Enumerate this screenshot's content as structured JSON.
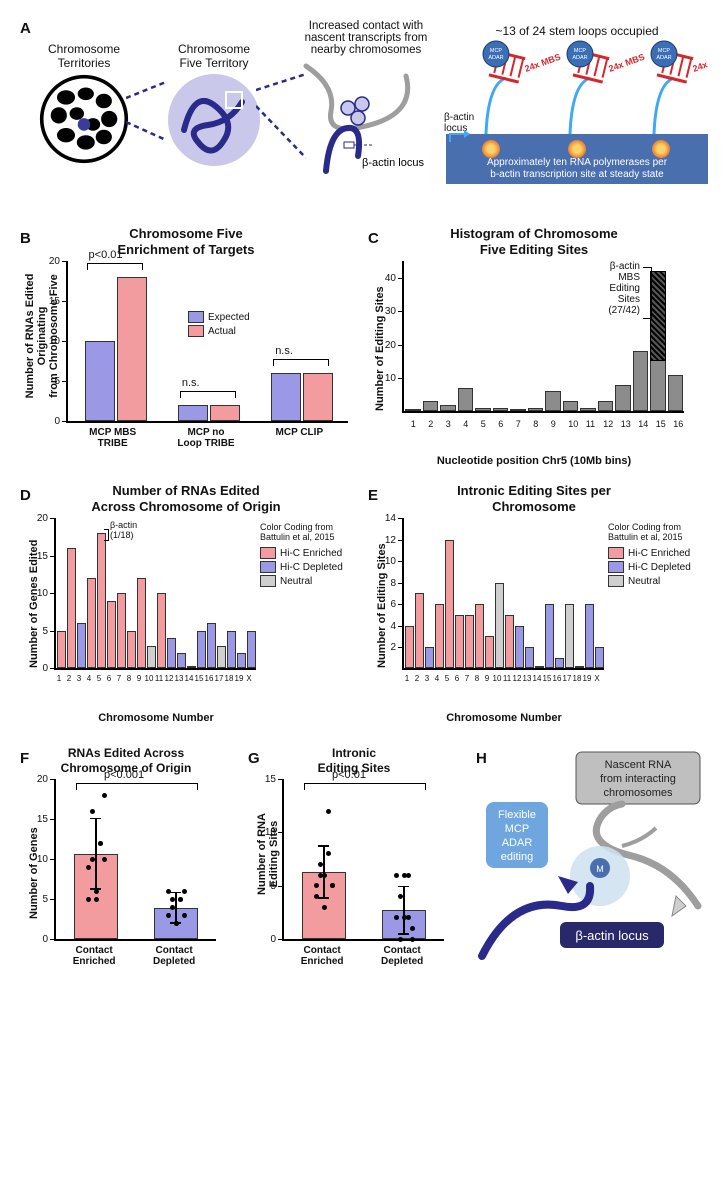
{
  "panelA": {
    "label": "A",
    "territories": "Chromosome\nTerritories",
    "chr5": "Chromosome\nFive Territory",
    "contact": "Increased contact with\nnascent transcripts from\nnearby chromosomes",
    "locus": "β-actin locus",
    "stemloops": "~13 of 24 stem loops occupied",
    "bottom": "Approximately ten RNA polymerases per\nb-actin transcription site at steady state",
    "mbs": "24x MBS",
    "badge": "MCP\nADAR",
    "betaLocusArrow": "β-actin\nlocus"
  },
  "panelB": {
    "label": "B",
    "title": "Chromosome Five\nEnrichment of Targets",
    "ylabel": "Number of RNAs Edited Originating\nfrom Chromosome Five",
    "ylim": [
      0,
      20
    ],
    "ytick_step": 5,
    "groups": [
      "MCP MBS\nTRIBE",
      "MCP no\nLoop TRIBE",
      "MCP CLIP"
    ],
    "series": [
      "Expected",
      "Actual"
    ],
    "series_colors": [
      "#9b98e5",
      "#f39ca0"
    ],
    "values": [
      [
        10,
        18
      ],
      [
        2,
        2
      ],
      [
        6,
        6
      ]
    ],
    "sig": [
      "p<0.01",
      "n.s.",
      "n.s."
    ]
  },
  "panelC": {
    "label": "C",
    "title": "Histogram of Chromosome\nFive Editing Sites",
    "ylabel": "Number of Editing  Sites",
    "xlabel": "Nucleotide position Chr5 (10Mb bins)",
    "ylim": [
      0,
      45
    ],
    "yticks": [
      10,
      20,
      30,
      40
    ],
    "bins": [
      "1",
      "2",
      "3",
      "4",
      "5",
      "6",
      "7",
      "8",
      "9",
      "10",
      "11",
      "12",
      "13",
      "14",
      "15",
      "16"
    ],
    "values": [
      0,
      3,
      2,
      7,
      1,
      1,
      0,
      1,
      6,
      3,
      1,
      3,
      8,
      18,
      42,
      11
    ],
    "special_index": 14,
    "special_lower": 15,
    "annotation": "β-actin\nMBS\nEditing\nSites\n(27/42)",
    "bar_color": "#8c8c8c",
    "hatch_color": "#000000"
  },
  "panelD": {
    "label": "D",
    "title": "Number of RNAs Edited\nAcross Chromosome of Origin",
    "ylabel": "Number of Genes Edited",
    "xlabel": "Chromosome Number",
    "ylim": [
      0,
      20
    ],
    "ytick_step": 5,
    "legend_title": "Color Coding from\nBattulin et al, 2015",
    "legend_items": [
      "Hi-C Enriched",
      "Hi-C Depleted",
      "Neutral"
    ],
    "legend_colors": [
      "#f39ca0",
      "#9b98e5",
      "#cfcfcf"
    ],
    "categories": [
      "1",
      "2",
      "3",
      "4",
      "5",
      "6",
      "7",
      "8",
      "9",
      "10",
      "11",
      "12",
      "13",
      "14",
      "15",
      "16",
      "17",
      "18",
      "19",
      "X"
    ],
    "values": [
      5,
      16,
      6,
      12,
      18,
      9,
      10,
      5,
      12,
      3,
      10,
      4,
      2,
      0,
      5,
      6,
      3,
      5,
      2,
      5
    ],
    "classes": [
      "e",
      "e",
      "d",
      "e",
      "e",
      "e",
      "e",
      "e",
      "e",
      "n",
      "e",
      "d",
      "d",
      "n",
      "d",
      "d",
      "n",
      "d",
      "d",
      "d"
    ],
    "annotation": "β-actin\n(1/18)",
    "annotation_index": 4
  },
  "panelE": {
    "label": "E",
    "title": "Intronic Editing Sites per\nChromosome",
    "ylabel": "Number of Editing  Sites",
    "xlabel": "Chromosome Number",
    "ylim": [
      0,
      14
    ],
    "yticks": [
      2,
      4,
      6,
      8,
      10,
      12,
      14
    ],
    "legend_title": "Color Coding from\nBattulin et al, 2015",
    "legend_items": [
      "Hi-C Enriched",
      "Hi-C Depleted",
      "Neutral"
    ],
    "legend_colors": [
      "#f39ca0",
      "#9b98e5",
      "#cfcfcf"
    ],
    "categories": [
      "1",
      "2",
      "3",
      "4",
      "5",
      "6",
      "7",
      "8",
      "9",
      "10",
      "11",
      "12",
      "13",
      "14",
      "15",
      "16",
      "17",
      "18",
      "19",
      "X"
    ],
    "values": [
      4,
      7,
      2,
      6,
      12,
      5,
      5,
      6,
      3,
      8,
      5,
      4,
      2,
      0,
      6,
      1,
      6,
      0,
      6,
      2
    ],
    "classes": [
      "e",
      "e",
      "d",
      "e",
      "e",
      "e",
      "e",
      "e",
      "e",
      "n",
      "e",
      "d",
      "d",
      "n",
      "d",
      "d",
      "n",
      "d",
      "d",
      "d"
    ]
  },
  "panelF": {
    "label": "F",
    "title": "RNAs Edited Across\nChromosome of Origin",
    "ylabel": "Number of Genes",
    "ylim": [
      0,
      20
    ],
    "ytick_step": 5,
    "categories": [
      "Contact\nEnriched",
      "Contact\nDepleted"
    ],
    "means": [
      10.7,
      3.9
    ],
    "sds": [
      4.5,
      2.0
    ],
    "points": [
      [
        5,
        16,
        6,
        12,
        18,
        9,
        10,
        5,
        12,
        10
      ],
      [
        6,
        4,
        2,
        5,
        6,
        3,
        5,
        2,
        5,
        3
      ]
    ],
    "colors": [
      "#f39ca0",
      "#9b98e5"
    ],
    "sig": "p<0.001"
  },
  "panelG": {
    "label": "G",
    "title": "Intronic\nEditing Sites",
    "ylabel": "Number of  RNA\nEditing Sites",
    "ylim": [
      0,
      15
    ],
    "ytick_step": 5,
    "categories": [
      "Contact\nEnriched",
      "Contact\nDepleted"
    ],
    "means": [
      6.3,
      2.7
    ],
    "sds": [
      2.5,
      2.3
    ],
    "points": [
      [
        4,
        7,
        6,
        12,
        5,
        5,
        6,
        3,
        8,
        5
      ],
      [
        2,
        4,
        2,
        6,
        1,
        6,
        0,
        6,
        2,
        0
      ]
    ],
    "colors": [
      "#f39ca0",
      "#9b98e5"
    ],
    "sig": "p<0.01"
  },
  "panelH": {
    "label": "H",
    "nascent": "Nascent RNA\nfrom interacting\nchromosomes",
    "mcp": "Flexible\nMCP\nADAR\nediting",
    "locus": "β-actin locus",
    "m": "M"
  }
}
